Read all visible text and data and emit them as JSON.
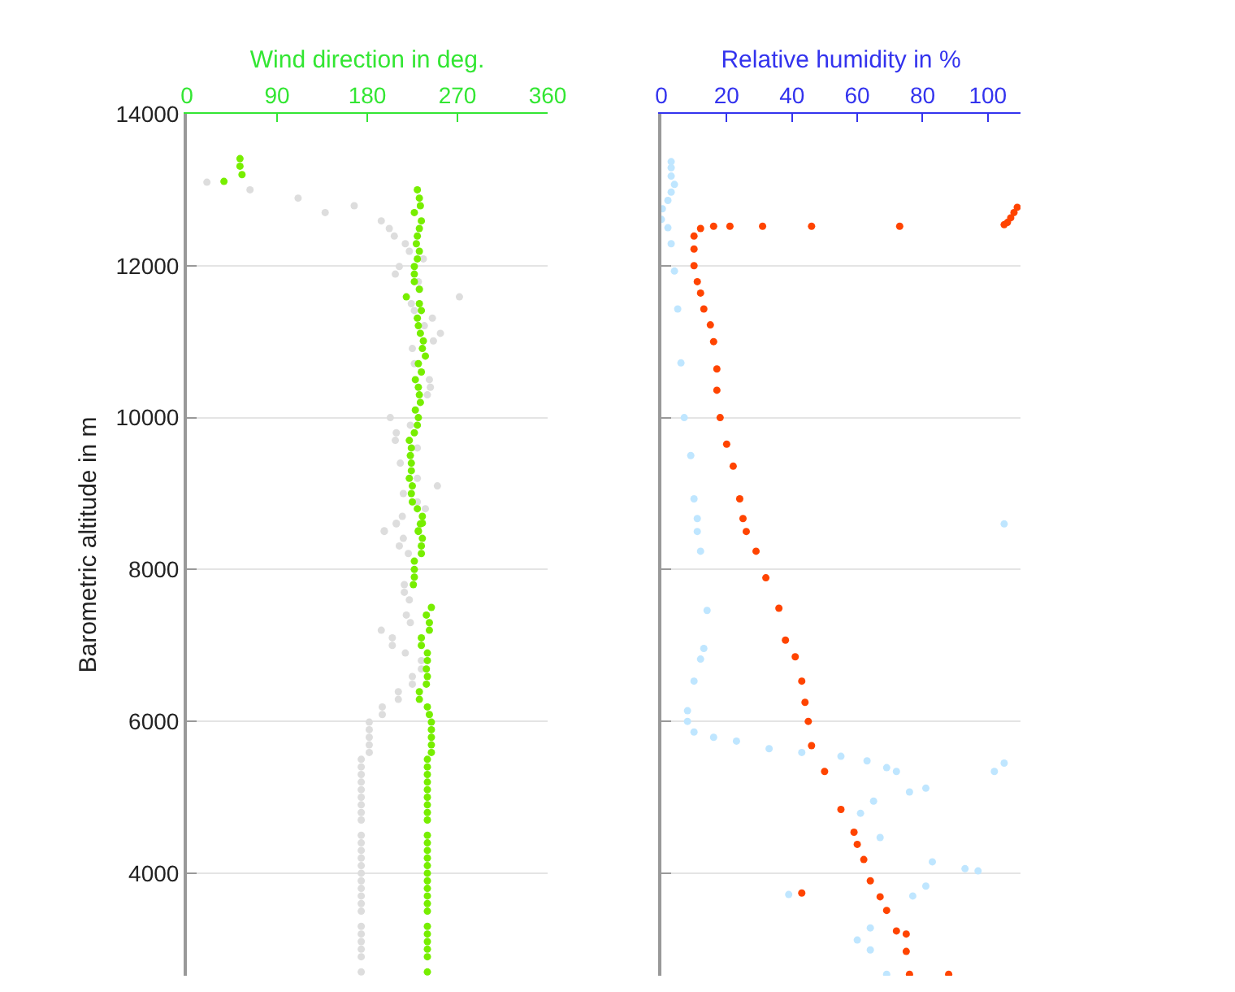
{
  "chart_data": [
    {
      "type": "scatter",
      "xlabel": "Wind direction in deg.",
      "ylabel": "Barometric altitude in m",
      "xlim": [
        0,
        360
      ],
      "xticks": [
        0,
        90,
        180,
        270,
        360
      ],
      "ylim": [
        2650,
        14000
      ],
      "yticks": [
        4000,
        6000,
        8000,
        10000,
        12000,
        14000
      ],
      "grid": "y",
      "marker": "circle",
      "series": [
        {
          "color": "#dddddd",
          "x": [
            20,
            63,
            111,
            167,
            138,
            194,
            202,
            207,
            218,
            222,
            236,
            212,
            208,
            231,
            232,
            272,
            224,
            227,
            245,
            237,
            253,
            246,
            225,
            227,
            242,
            243,
            240,
            203,
            223,
            209,
            208,
            230,
            213,
            230,
            250,
            216,
            230,
            238,
            215,
            209,
            197,
            209,
            197,
            216,
            212,
            221,
            217,
            217,
            222,
            219,
            223,
            194,
            205,
            205,
            218,
            234,
            234,
            225,
            225,
            211,
            211,
            195,
            195,
            182,
            182,
            182,
            182,
            182,
            174,
            174,
            174,
            174,
            174,
            174,
            174,
            174,
            174,
            174,
            174,
            174,
            174,
            174,
            174,
            174,
            174,
            174,
            174,
            174,
            174,
            174,
            174,
            174,
            174,
            174
          ],
          "values": [
            13100,
            13000,
            12890,
            12790,
            12700,
            12590,
            12490,
            12390,
            12290,
            12190,
            12090,
            11990,
            11890,
            11790,
            11690,
            11590,
            11500,
            11410,
            11310,
            11210,
            11110,
            11010,
            10910,
            10710,
            10500,
            10400,
            10300,
            10000,
            9900,
            9800,
            9700,
            9600,
            9400,
            9200,
            9100,
            9000,
            8890,
            8800,
            8700,
            8600,
            8500,
            8610,
            8510,
            8410,
            8310,
            8210,
            7800,
            7700,
            7600,
            7400,
            7300,
            7200,
            7100,
            7000,
            6900,
            6800,
            6690,
            6590,
            6490,
            6390,
            6290,
            6190,
            6090,
            5990,
            5890,
            5790,
            5690,
            5590,
            5500,
            5400,
            5300,
            5200,
            5100,
            5000,
            4900,
            4800,
            4700,
            4500,
            4400,
            4300,
            4200,
            4100,
            4000,
            3900,
            3800,
            3700,
            3600,
            3500,
            3300,
            3200,
            3100,
            3000,
            2900,
            2700
          ]
        },
        {
          "color": "#77ee00",
          "x": [
            53,
            53,
            55,
            37,
            230,
            232,
            233,
            227,
            234,
            232,
            230,
            229,
            232,
            230,
            227,
            227,
            227,
            232,
            219,
            232,
            234,
            230,
            231,
            233,
            236,
            235,
            238,
            231,
            234,
            228,
            231,
            232,
            233,
            228,
            231,
            230,
            227,
            222,
            224,
            223,
            224,
            224,
            222,
            225,
            224,
            225,
            230,
            235,
            233,
            231,
            235,
            231,
            235,
            234,
            234,
            227,
            227,
            227,
            226,
            244,
            239,
            242,
            242,
            234,
            234,
            240,
            240,
            239,
            240,
            239,
            232,
            232,
            240,
            242,
            244,
            244,
            244,
            244,
            244,
            240,
            240,
            240,
            240,
            240,
            240,
            240,
            240,
            240,
            240,
            240,
            240,
            240,
            240,
            240,
            240,
            240,
            240,
            240,
            240,
            240,
            240,
            240,
            240,
            240,
            240
          ],
          "values": [
            13410,
            13310,
            13200,
            13110,
            13000,
            12890,
            12790,
            12700,
            12590,
            12490,
            12390,
            12290,
            12190,
            12090,
            11990,
            11890,
            11790,
            11690,
            11590,
            11500,
            11410,
            11310,
            11210,
            11110,
            11010,
            10910,
            10810,
            10710,
            10600,
            10500,
            10400,
            10300,
            10200,
            10100,
            10000,
            9900,
            9800,
            9700,
            9600,
            9500,
            9400,
            9300,
            9200,
            9100,
            9000,
            8890,
            8800,
            8700,
            8600,
            8500,
            8610,
            8510,
            8410,
            8310,
            8210,
            8110,
            8000,
            7900,
            7800,
            7500,
            7400,
            7300,
            7200,
            7100,
            7000,
            6900,
            6800,
            6690,
            6590,
            6490,
            6390,
            6290,
            6190,
            6090,
            5990,
            5890,
            5790,
            5690,
            5590,
            5500,
            5400,
            5300,
            5200,
            5100,
            5000,
            4900,
            4800,
            4700,
            4500,
            4400,
            4300,
            4200,
            4100,
            4000,
            3900,
            3800,
            3700,
            3600,
            3500,
            3300,
            3200,
            3100,
            3000,
            2900,
            2700
          ]
        }
      ]
    },
    {
      "type": "scatter",
      "xlabel": "Relative humidity in %",
      "xlim": [
        0,
        110
      ],
      "xticks": [
        0,
        20,
        40,
        60,
        80,
        100
      ],
      "ylim": [
        2650,
        14000
      ],
      "yticks": [
        4000,
        6000,
        8000,
        10000,
        12000,
        14000
      ],
      "grid": "y",
      "marker": "circle",
      "tick_labels": "x",
      "series": [
        {
          "color": "#bfe6ff",
          "x": [
            3,
            3,
            3,
            4,
            3,
            2,
            0.3,
            0,
            2,
            3,
            4,
            5,
            6,
            7,
            9,
            10,
            11,
            105,
            11,
            12,
            14,
            13,
            12,
            10,
            8,
            8,
            10,
            16,
            23,
            33,
            43,
            55,
            63,
            69,
            72,
            76,
            81,
            65,
            61,
            67,
            83,
            93,
            97,
            102,
            105,
            81,
            77,
            39,
            64,
            60,
            64,
            69
          ],
          "values": [
            13370,
            13290,
            13180,
            13070,
            12970,
            12860,
            12750,
            12610,
            12500,
            12290,
            11930,
            11430,
            10720,
            10000,
            9500,
            8930,
            8500,
            8600,
            8670,
            8240,
            7460,
            6960,
            6820,
            6530,
            6140,
            6000,
            5860,
            5790,
            5740,
            5640,
            5590,
            5540,
            5480,
            5390,
            5340,
            5070,
            5120,
            4950,
            4790,
            4470,
            4150,
            4060,
            4030,
            5340,
            5450,
            3830,
            3700,
            3720,
            3280,
            3120,
            2990,
            2670
          ]
        },
        {
          "color": "#ff4400",
          "x": [
            105,
            106,
            107,
            108,
            109,
            16,
            21,
            31,
            46,
            73,
            12,
            10,
            10,
            10,
            11,
            12,
            13,
            15,
            16,
            17,
            17,
            18,
            20,
            22,
            24,
            26,
            25,
            29,
            32,
            36,
            38,
            41,
            43,
            44,
            45,
            46,
            50,
            55,
            59,
            60,
            62,
            64,
            67,
            69,
            72,
            75,
            75,
            43,
            76,
            88
          ],
          "values": [
            12540,
            12570,
            12630,
            12700,
            12770,
            12520,
            12520,
            12520,
            12520,
            12520,
            12490,
            12390,
            12220,
            12000,
            11790,
            11640,
            11430,
            11220,
            11000,
            10640,
            10360,
            10000,
            9650,
            9360,
            8930,
            8500,
            8670,
            8240,
            7890,
            7490,
            7070,
            6850,
            6530,
            6250,
            6000,
            5680,
            5340,
            4840,
            4540,
            4380,
            4180,
            3900,
            3690,
            3510,
            3240,
            3200,
            2970,
            3740,
            2670,
            2670
          ]
        }
      ]
    }
  ]
}
